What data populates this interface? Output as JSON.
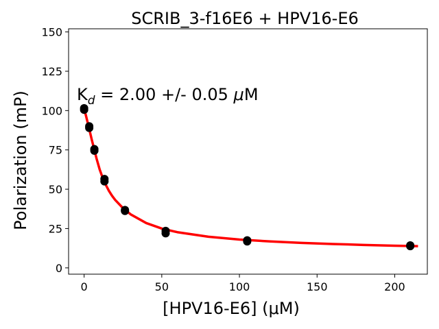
{
  "chart_data": {
    "type": "scatter",
    "title": "SCRIB_3-f16E6 + HPV16-E6",
    "xlabel": "[HPV16-E6] (μM)",
    "ylabel": "Polarization (mP)",
    "annotation": {
      "prefix": "K",
      "subscript": "d",
      "suffix": " = 2.00 +/- 0.05 ",
      "mu": "μ",
      "unit": "M"
    },
    "xlim": [
      -10,
      221
    ],
    "ylim": [
      -4,
      152
    ],
    "x_ticks": [
      0,
      50,
      100,
      150,
      200
    ],
    "y_ticks": [
      0,
      25,
      50,
      75,
      100,
      125,
      150
    ],
    "grid": false,
    "series": [
      {
        "kind": "points",
        "color": "#000000",
        "x": [
          0,
          0,
          3.3,
          3.3,
          6.6,
          6.6,
          13.1,
          13.1,
          26.3,
          26.3,
          52.5,
          52.5,
          105,
          105,
          210,
          210
        ],
        "y": [
          101.5,
          100.5,
          90,
          89,
          75.5,
          74.5,
          56.5,
          55,
          36.8,
          36.2,
          23.5,
          22,
          17.5,
          16.8,
          14.3,
          13.8
        ]
      },
      {
        "kind": "fit",
        "color": "#ff0000",
        "x": [
          -0.5,
          1,
          2,
          3,
          4,
          5,
          6,
          7,
          8,
          10,
          12,
          14,
          16,
          18,
          20,
          25,
          30,
          40,
          50,
          60,
          80,
          100,
          120,
          140,
          160,
          180,
          200,
          215
        ],
        "y": [
          102,
          97.5,
          93.5,
          89.5,
          85.3,
          81.2,
          77.3,
          73.4,
          69.5,
          62.6,
          57.1,
          52.7,
          48.9,
          45.8,
          43.2,
          38.0,
          34.0,
          28.5,
          25.0,
          22.7,
          19.8,
          18.0,
          16.8,
          15.9,
          15.2,
          14.6,
          14.1,
          13.8
        ]
      }
    ]
  }
}
